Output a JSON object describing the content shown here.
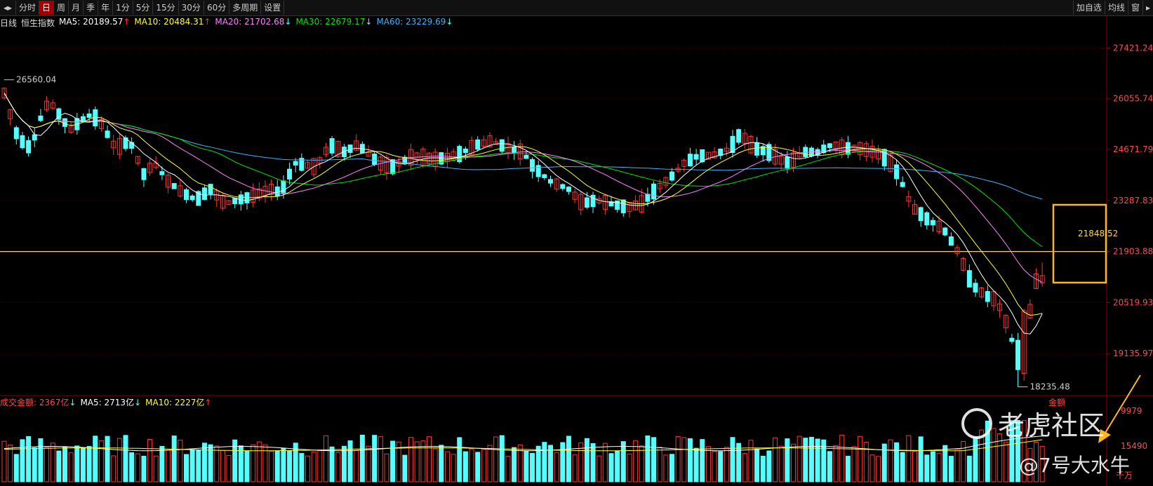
{
  "toolbar": {
    "items": [
      "分时",
      "日",
      "周",
      "月",
      "季",
      "年",
      "1分",
      "5分",
      "15分",
      "30分",
      "60分",
      "多周期",
      "设置"
    ],
    "active_index": 1,
    "right_items": [
      "加自选",
      "均线",
      "窗"
    ]
  },
  "info": {
    "period": "日线",
    "name": "恒生指数",
    "ma5": "MA5: 20189.57",
    "ma10": "MA10: 20484.31",
    "ma20": "MA20: 21702.68",
    "ma30": "MA30: 22679.17",
    "ma60": "MA60: 23229.69",
    "ma5_arrow": "↑",
    "ma10_arrow": "↑",
    "ma20_arrow": "↓",
    "ma30_arrow": "↓",
    "ma60_arrow": "↓"
  },
  "volume_info": {
    "label": "成交金额: 2367亿",
    "label_arrow": "↓",
    "ma5": "MA5: 2713亿",
    "ma5_arrow": "↓",
    "ma10": "MA10: 2227亿",
    "ma10_arrow": "↑"
  },
  "price_axis": {
    "labels": [
      "27421.24",
      "26055.74",
      "24671.79",
      "23287.83",
      "21903.88",
      "20519.93",
      "19135.97"
    ],
    "values": [
      27421.24,
      26055.74,
      24671.79,
      23287.83,
      21903.88,
      20519.93,
      19135.97
    ]
  },
  "volume_axis": {
    "labels": [
      "金额",
      "9979",
      "15490",
      "千万"
    ]
  },
  "annotations": {
    "high": "26560.04",
    "low": "18235.48",
    "box_price": "21848.52",
    "hline_value": 21903.88
  },
  "watermark": {
    "brand": "老虎社区",
    "author": "@7号大水牛"
  },
  "colors": {
    "up": "#ff3232",
    "down": "#54ffff",
    "ma5": "#ffffff",
    "ma10": "#ffff33",
    "ma20": "#ff80ff",
    "ma30": "#00e600",
    "ma60": "#3cb4ff",
    "hline": "#ffd24a",
    "box": "#ffb81c",
    "arrow": "#ffb81c",
    "axis_text": "#ff4a4a"
  }
}
